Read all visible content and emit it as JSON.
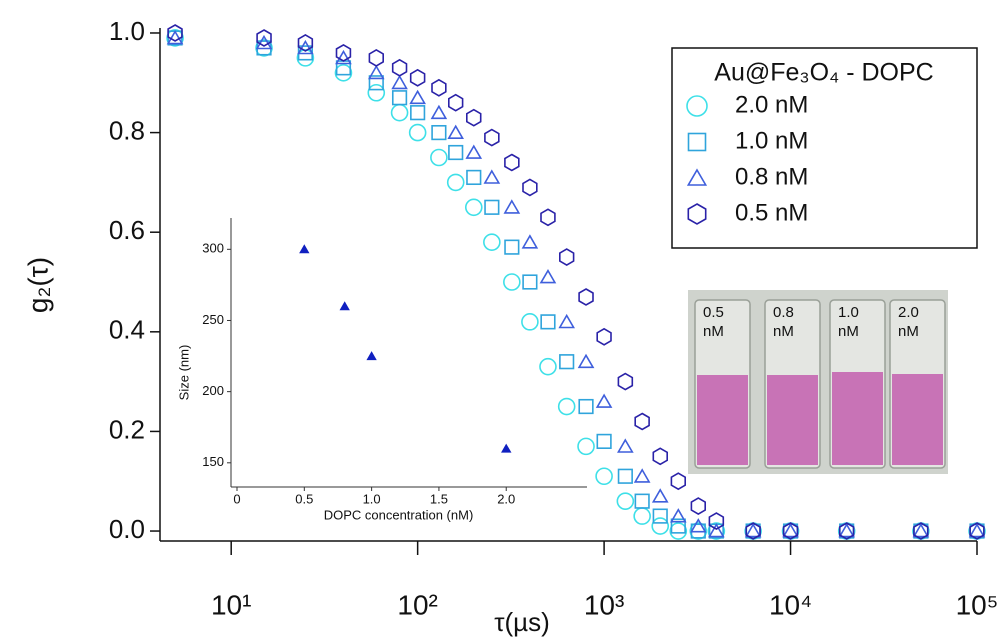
{
  "chart_data": [
    {
      "type": "scatter",
      "xscale": "log",
      "xlabel": "τ(µs)",
      "ylabel": "g₂(τ)",
      "legend_title": "Au@Fe₃O₄ - DOPC",
      "legend": "upper right",
      "xlim": [
        4,
        100000
      ],
      "ylim": [
        -0.02,
        1.01
      ],
      "xticks": [
        {
          "value": 10,
          "label": "10¹"
        },
        {
          "value": 100,
          "label": "10²"
        },
        {
          "value": 1000,
          "label": "10³"
        },
        {
          "value": 10000,
          "label": "10⁴"
        },
        {
          "value": 100000,
          "label": "10⁵"
        }
      ],
      "yticks": [
        {
          "value": 0,
          "label": "0.0"
        },
        {
          "value": 0.2,
          "label": "0.2"
        },
        {
          "value": 0.4,
          "label": "0.4"
        },
        {
          "value": 0.6,
          "label": "0.6"
        },
        {
          "value": 0.8,
          "label": "0.8"
        },
        {
          "value": 1,
          "label": "1.0"
        }
      ],
      "x": [
        5,
        15,
        25,
        40,
        60,
        80,
        100,
        130,
        160,
        200,
        250,
        320,
        400,
        500,
        630,
        800,
        1000,
        1300,
        1600,
        2000,
        2500,
        3200,
        4000,
        6300,
        10000,
        20000,
        50000,
        100000
      ],
      "series": [
        {
          "name": "2.0 nM",
          "color": "#3ee0e8",
          "marker": "circle",
          "values": [
            0.99,
            0.97,
            0.95,
            0.92,
            0.88,
            0.84,
            0.8,
            0.75,
            0.7,
            0.65,
            0.58,
            0.5,
            0.42,
            0.33,
            0.25,
            0.17,
            0.11,
            0.06,
            0.03,
            0.01,
            0,
            0,
            0,
            0,
            0,
            0,
            0,
            0
          ]
        },
        {
          "name": "1.0 nM",
          "color": "#2fa4dc",
          "marker": "square",
          "values": [
            0.99,
            0.97,
            0.96,
            0.93,
            0.9,
            0.87,
            0.84,
            0.8,
            0.76,
            0.71,
            0.65,
            0.57,
            0.5,
            0.42,
            0.34,
            0.25,
            0.18,
            0.11,
            0.06,
            0.03,
            0.01,
            0,
            0,
            0,
            0,
            0,
            0,
            0
          ]
        },
        {
          "name": "0.8 nM",
          "color": "#3f5fdc",
          "marker": "triangle",
          "values": [
            0.99,
            0.98,
            0.97,
            0.95,
            0.92,
            0.9,
            0.87,
            0.84,
            0.8,
            0.76,
            0.71,
            0.65,
            0.58,
            0.51,
            0.42,
            0.34,
            0.26,
            0.17,
            0.11,
            0.07,
            0.03,
            0.01,
            0,
            0,
            0,
            0,
            0,
            0
          ]
        },
        {
          "name": "0.5 nM",
          "color": "#2a22a8",
          "marker": "hexagon",
          "values": [
            1.0,
            0.99,
            0.98,
            0.96,
            0.95,
            0.93,
            0.91,
            0.89,
            0.86,
            0.83,
            0.79,
            0.74,
            0.69,
            0.63,
            0.55,
            0.47,
            0.39,
            0.3,
            0.22,
            0.15,
            0.1,
            0.05,
            0.02,
            0,
            0,
            0,
            0,
            0
          ]
        }
      ]
    },
    {
      "type": "scatter",
      "xlabel": "DOPC concentration (nM)",
      "ylabel": "Size (nm)",
      "xlim": [
        0,
        2.6
      ],
      "ylim": [
        133,
        322
      ],
      "xticks": [
        0,
        0.5,
        {
          "value": 1,
          "label": "1.0"
        },
        1.5,
        {
          "value": 2,
          "label": "2.0"
        }
      ],
      "yticks": [
        150,
        200,
        250,
        300
      ],
      "x": [
        0.5,
        0.8,
        1.0,
        2.0
      ],
      "values": [
        300,
        260,
        225,
        160
      ],
      "color": "#1020c0",
      "marker": "triangle"
    }
  ],
  "photo_labels": [
    [
      "0.5",
      "nM"
    ],
    [
      "0.8",
      "nM"
    ],
    [
      "1.0",
      "nM"
    ],
    [
      "2.0",
      "nM"
    ]
  ]
}
